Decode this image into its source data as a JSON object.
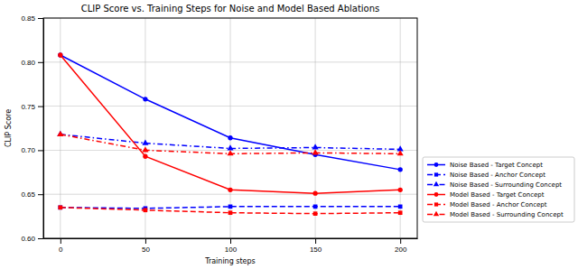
{
  "chart_data": {
    "type": "line",
    "title": "CLIP Score vs. Training Steps for Noise and Model Based Ablations",
    "x_label": "Training steps",
    "y_label": "CLIP Score",
    "x": [
      0,
      50,
      100,
      150,
      200
    ],
    "xlim": [
      -10,
      210
    ],
    "xticks": [
      0,
      50,
      100,
      150,
      200
    ],
    "ylim": [
      0.6,
      0.85
    ],
    "yticks": [
      {
        "value": 0.6,
        "label": "0.60"
      },
      0.65,
      {
        "value": 0.7,
        "label": "0.70"
      },
      0.75,
      {
        "value": 0.8,
        "label": "0.80"
      },
      0.85
    ],
    "grid": true,
    "legend": "lower right",
    "series": [
      {
        "name": "Noise Based - Target Concept",
        "color": "#0000ff",
        "marker": "circle",
        "line_style": "solid",
        "values": [
          0.808,
          0.758,
          0.714,
          0.695,
          0.678
        ]
      },
      {
        "name": "Noise Based - Anchor Concept",
        "color": "#0000ff",
        "marker": "square",
        "line_style": "dashed",
        "values": [
          0.635,
          0.634,
          0.636,
          0.636,
          0.636
        ]
      },
      {
        "name": "Noise Based - Surrounding Concept",
        "color": "#0000ff",
        "marker": "triangle",
        "line_style": "dashdot",
        "values": [
          0.718,
          0.708,
          0.702,
          0.703,
          0.701
        ]
      },
      {
        "name": "Model Based - Target Concept",
        "color": "#ff0000",
        "marker": "circle",
        "line_style": "solid",
        "values": [
          0.808,
          0.693,
          0.655,
          0.651,
          0.655
        ]
      },
      {
        "name": "Model Based - Anchor Concept",
        "color": "#ff0000",
        "marker": "square",
        "line_style": "dashed",
        "values": [
          0.635,
          0.632,
          0.629,
          0.628,
          0.629
        ]
      },
      {
        "name": "Model Based - Surrounding Concept",
        "color": "#ff0000",
        "marker": "triangle",
        "line_style": "dashdot",
        "values": [
          0.718,
          0.7,
          0.696,
          0.697,
          0.696
        ]
      }
    ]
  }
}
